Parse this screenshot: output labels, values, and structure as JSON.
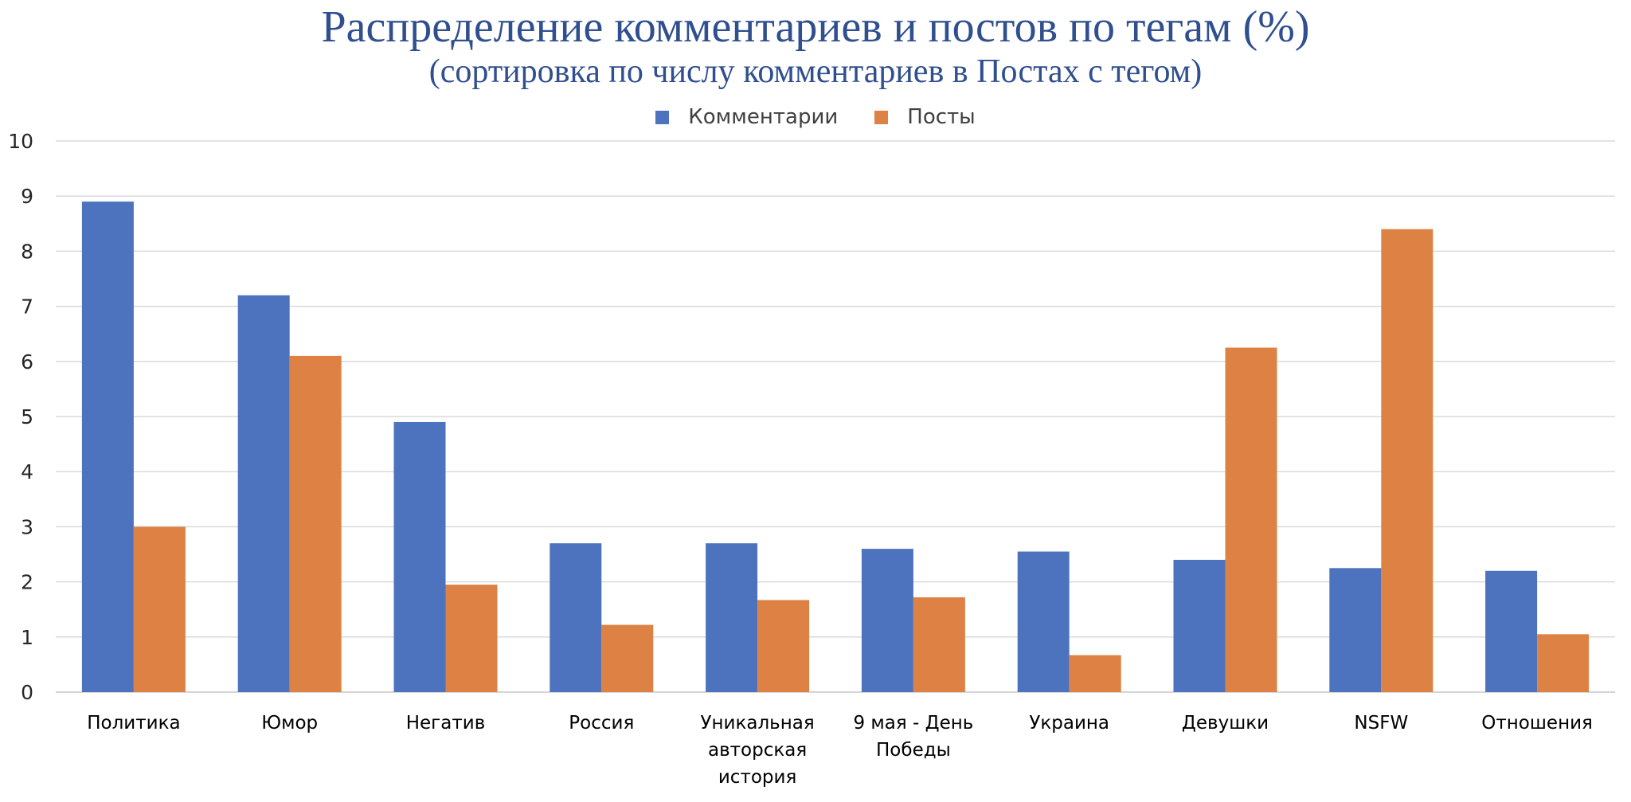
{
  "chart_data": {
    "type": "bar",
    "title": "Распределение комментариев и постов по тегам (%)",
    "subtitle": "(сортировка по числу комментариев в Постах с тегом)",
    "categories": [
      [
        "Политика"
      ],
      [
        "Юмор"
      ],
      [
        "Негатив"
      ],
      [
        "Россия"
      ],
      [
        "Уникальная",
        "авторская",
        "история"
      ],
      [
        "9 мая - День",
        "Победы"
      ],
      [
        "Украина"
      ],
      [
        "Девушки"
      ],
      [
        "NSFW"
      ],
      [
        "Отношения"
      ]
    ],
    "series": [
      {
        "name": "Комментарии",
        "color": "#4E73BE",
        "values": [
          8.9,
          7.2,
          4.9,
          2.7,
          2.7,
          2.6,
          2.55,
          2.4,
          2.25,
          2.2
        ]
      },
      {
        "name": "Посты",
        "color": "#DD8244",
        "values": [
          3.0,
          6.1,
          1.95,
          1.22,
          1.67,
          1.72,
          0.67,
          6.25,
          8.4,
          1.05
        ]
      }
    ],
    "ylim": [
      0,
      10
    ],
    "yticks": [
      0,
      1,
      2,
      3,
      4,
      5,
      6,
      7,
      8,
      9,
      10
    ],
    "grid": true,
    "legend_position": "top-center",
    "xlabel": "",
    "ylabel": ""
  }
}
